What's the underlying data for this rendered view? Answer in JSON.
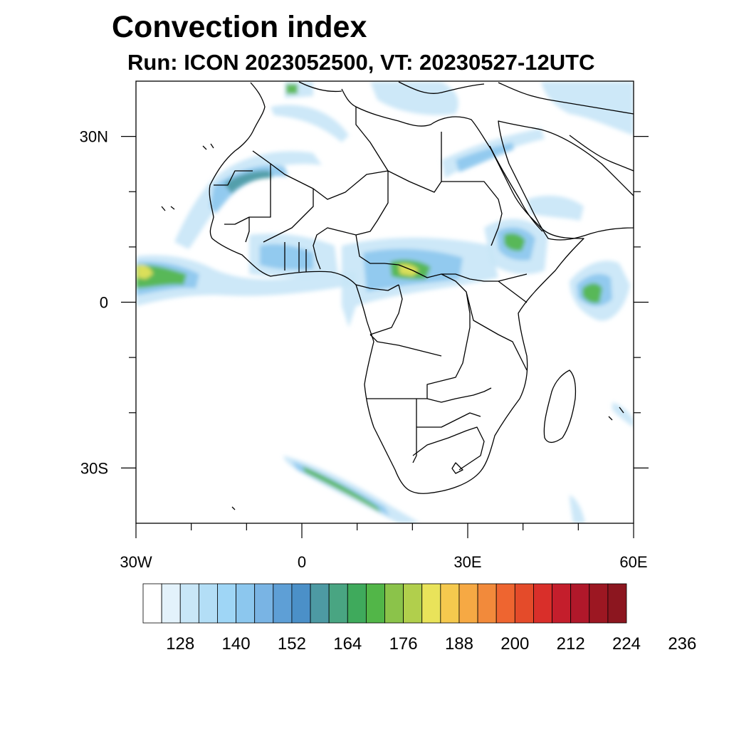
{
  "title": "Convection index",
  "subtitle": "Run: ICON 2023052500,  VT: 20230527-12UTC",
  "map": {
    "lon_range": [
      -30,
      60
    ],
    "lat_range": [
      -40,
      40
    ],
    "x_ticks": [
      {
        "lon": -30,
        "label": "30W"
      },
      {
        "lon": 0,
        "label": "0"
      },
      {
        "lon": 30,
        "label": "30E"
      },
      {
        "lon": 60,
        "label": "60E"
      }
    ],
    "y_ticks": [
      {
        "lat": 30,
        "label": "30N"
      },
      {
        "lat": 0,
        "label": "0"
      },
      {
        "lat": -30,
        "label": "30S"
      }
    ]
  },
  "colorbar": {
    "levels_shown": [
      "128",
      "140",
      "152",
      "164",
      "176",
      "188",
      "200",
      "212",
      "224",
      "236"
    ],
    "colors": [
      "#ffffff",
      "#e3f2fb",
      "#c8e6f7",
      "#b3def6",
      "#9fd6f6",
      "#8cc7ee",
      "#79b4e4",
      "#5e9fd6",
      "#4b90c8",
      "#4d9aa3",
      "#49a582",
      "#3faa5c",
      "#52b648",
      "#8bc34a",
      "#b1cf4c",
      "#e9e35a",
      "#f5c94e",
      "#f6a944",
      "#f28a3b",
      "#ee6530",
      "#e44b2a",
      "#d92f2a",
      "#c41e2c",
      "#b0182a",
      "#9c1722",
      "#8c161f"
    ]
  },
  "field_colors": {
    "light": "#c8e6f7",
    "medium": "#8cc7ee",
    "teal": "#4d9aa3",
    "green": "#52b648",
    "yellow": "#e9e35a",
    "orange": "#f28a3b",
    "red": "#e44b2a"
  }
}
